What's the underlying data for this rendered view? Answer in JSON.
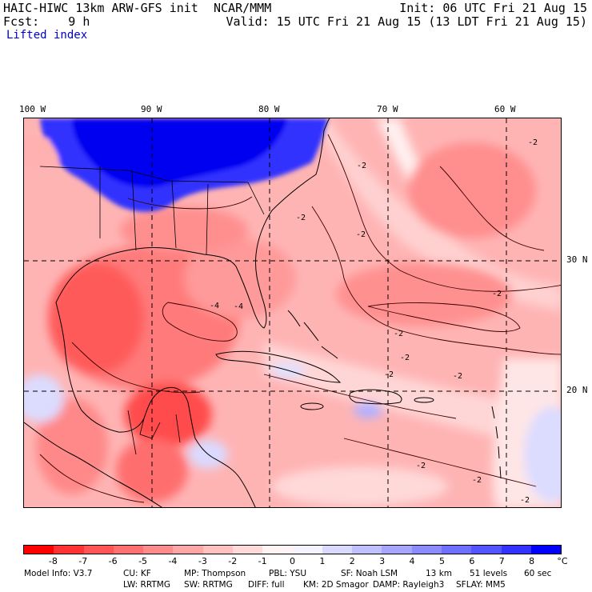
{
  "header": {
    "model": "HAIC-HIWC 13km ARW-GFS init",
    "org": "NCAR/MMM",
    "init": "Init: 06 UTC Fri 21 Aug 15",
    "fcst": "Fcst:    9 h",
    "valid": "Valid: 15 UTC Fri 21 Aug 15 (13 LDT Fri 21 Aug 15)",
    "field": "Lifted index"
  },
  "axes": {
    "lon_labels": [
      "100 W",
      "90 W",
      "80 W",
      "70 W",
      "60 W"
    ],
    "lat_labels": [
      "30 N",
      "20 N"
    ]
  },
  "contour_labels": [
    "-2",
    "-2",
    "-2",
    "-2",
    "-2",
    "-2",
    "-2",
    "-2",
    "-2",
    "-4",
    "-4",
    "-2",
    "-2",
    "-2"
  ],
  "colorbar": {
    "colors": [
      "#ff0000",
      "#ff3333",
      "#ff5555",
      "#ff7070",
      "#ff8c8c",
      "#ffa6a6",
      "#ffc0c0",
      "#ffdada",
      "#fff4f4",
      "#f4f4ff",
      "#dadaff",
      "#c0c0ff",
      "#a6a6ff",
      "#8c8cff",
      "#7070ff",
      "#5555ff",
      "#3333ff",
      "#0000ff"
    ],
    "labels": [
      "-8",
      "-7",
      "-6",
      "-5",
      "-4",
      "-3",
      "-2",
      "-1",
      "0",
      "1",
      "2",
      "3",
      "4",
      "5",
      "6",
      "7",
      "8"
    ],
    "unit": "°C"
  },
  "footer": {
    "line1": [
      "Model Info: V3.7",
      "CU: KF",
      "MP: Thompson",
      "PBL: YSU",
      "SF: Noah LSM",
      "13 km",
      "51 levels",
      "60 sec"
    ],
    "line2": [
      "LW: RRTMG",
      "SW: RRTMG",
      "DIFF: full",
      "KM: 2D Smagor",
      "DAMP: Rayleigh3",
      "SFLAY: MM5"
    ]
  }
}
